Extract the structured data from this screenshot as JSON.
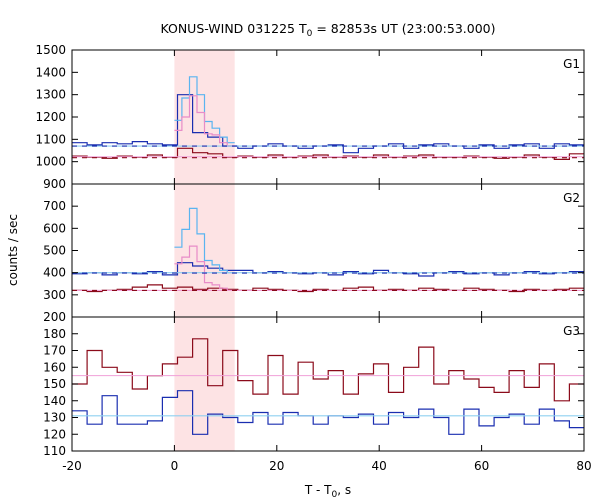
{
  "chart_data": {
    "type": "line",
    "title_main": "KONUS-WIND 031225 T",
    "title_sub": "0",
    "title_rest": " = 82853s UT (23:00:53.000)",
    "xlabel_main": "T - T",
    "xlabel_sub": "0",
    "xlabel_rest": ", s",
    "ylabel": "counts / sec",
    "xlim": [
      -20,
      80
    ],
    "x_ticks": [
      -20,
      0,
      20,
      40,
      60,
      80
    ],
    "highlight_interval": [
      0,
      11.776
    ],
    "bin_edges": [
      -20,
      -17.056,
      -14.112,
      -11.168,
      -8.224,
      -5.28,
      -2.336,
      0.608,
      3.552,
      6.496,
      9.44,
      12.384,
      15.328,
      18.272,
      21.216,
      24.16,
      27.104,
      30.048,
      32.992,
      35.936,
      38.88,
      41.824,
      44.768,
      47.712,
      50.656,
      53.6,
      56.544,
      59.488,
      62.432,
      65.376,
      68.32,
      71.264,
      74.208,
      77.152,
      80
    ],
    "fine_bin_edges": [
      0,
      1.472,
      2.944,
      4.416,
      5.888,
      7.36,
      8.832,
      10.304,
      11.776
    ],
    "panels": [
      {
        "label": "G1",
        "ylim": [
          900,
          1500
        ],
        "yticks": [
          900,
          1000,
          1100,
          1200,
          1300,
          1400,
          1500
        ],
        "series": [
          {
            "style": "step",
            "color": "#1a2eb0",
            "values": [
              1085,
              1075,
              1085,
              1080,
              1090,
              1080,
              1075,
              1300,
              1130,
              1110,
              1070,
              1060,
              1070,
              1080,
              1070,
              1060,
              1070,
              1075,
              1040,
              1060,
              1070,
              1080,
              1060,
              1075,
              1080,
              1070,
              1060,
              1075,
              1060,
              1075,
              1080,
              1060,
              1080,
              1075
            ]
          },
          {
            "style": "step",
            "color": "#8b0a1a",
            "values": [
              1025,
              1020,
              1015,
              1025,
              1020,
              1030,
              1020,
              1060,
              1040,
              1035,
              1020,
              1025,
              1020,
              1030,
              1020,
              1025,
              1030,
              1020,
              1025,
              1020,
              1030,
              1020,
              1025,
              1030,
              1020,
              1020,
              1025,
              1020,
              1015,
              1020,
              1030,
              1020,
              1010,
              1035
            ]
          },
          {
            "style": "fine-step",
            "color": "#5ab4f0",
            "values": [
              1185,
              1285,
              1380,
              1300,
              1180,
              1150,
              1110,
              1085
            ]
          },
          {
            "style": "fine-step",
            "color": "#e88cc8",
            "values": [
              1140,
              1200,
              1295,
              1220,
              1125,
              1120,
              1085,
              1070
            ]
          },
          {
            "style": "flat",
            "color": "#8fd0f0",
            "value": 1070
          },
          {
            "style": "flat",
            "color": "#f0a0d8",
            "value": 1022
          },
          {
            "style": "dashed",
            "color": "#1a2eb0",
            "value": 1070
          },
          {
            "style": "dashed",
            "color": "#8b0a1a",
            "value": 1018
          }
        ]
      },
      {
        "label": "G2",
        "ylim": [
          200,
          800
        ],
        "yticks": [
          200,
          300,
          400,
          500,
          600,
          700
        ],
        "series": [
          {
            "style": "step",
            "color": "#1a2eb0",
            "values": [
              395,
              400,
              390,
              400,
              395,
              405,
              390,
              445,
              430,
              420,
              410,
              410,
              400,
              405,
              400,
              395,
              400,
              390,
              405,
              395,
              410,
              400,
              395,
              385,
              400,
              405,
              395,
              400,
              390,
              400,
              405,
              395,
              400,
              405
            ]
          },
          {
            "style": "step",
            "color": "#8b0a1a",
            "values": [
              320,
              315,
              320,
              325,
              335,
              345,
              330,
              335,
              325,
              330,
              325,
              320,
              330,
              325,
              320,
              315,
              325,
              320,
              330,
              335,
              320,
              325,
              320,
              330,
              325,
              320,
              330,
              325,
              320,
              315,
              325,
              320,
              325,
              330
            ]
          },
          {
            "style": "fine-step",
            "color": "#5ab4f0",
            "values": [
              515,
              595,
              690,
              575,
              455,
              435,
              410,
              400
            ]
          },
          {
            "style": "fine-step",
            "color": "#e88cc8",
            "values": [
              440,
              470,
              520,
              450,
              355,
              345,
              330,
              320
            ]
          },
          {
            "style": "flat",
            "color": "#8fd0f0",
            "value": 400
          },
          {
            "style": "flat",
            "color": "#f0a0d8",
            "value": 320
          },
          {
            "style": "dashed",
            "color": "#1a2eb0",
            "value": 398
          },
          {
            "style": "dashed",
            "color": "#8b0a1a",
            "value": 320
          }
        ]
      },
      {
        "label": "G3",
        "ylim": [
          110,
          190
        ],
        "yticks": [
          110,
          120,
          130,
          140,
          150,
          160,
          170,
          180
        ],
        "series": [
          {
            "style": "step",
            "color": "#1a2eb0",
            "values": [
              134,
              126,
              143,
              126,
              126,
              128,
              142,
              146,
              120,
              132,
              130,
              127,
              133,
              126,
              133,
              131,
              126,
              131,
              130,
              132,
              126,
              133,
              130,
              135,
              130,
              120,
              135,
              125,
              130,
              132,
              126,
              135,
              128,
              124
            ]
          },
          {
            "style": "step",
            "color": "#8b0a1a",
            "values": [
              150,
              170,
              160,
              157,
              147,
              155,
              162,
              166,
              177,
              149,
              170,
              152,
              144,
              167,
              144,
              163,
              153,
              158,
              144,
              156,
              162,
              145,
              160,
              172,
              150,
              158,
              153,
              148,
              145,
              158,
              148,
              162,
              140,
              150
            ]
          },
          {
            "style": "flat",
            "color": "#8fd0f0",
            "value": 131
          },
          {
            "style": "flat",
            "color": "#f0a0d8",
            "value": 155
          }
        ]
      }
    ]
  }
}
